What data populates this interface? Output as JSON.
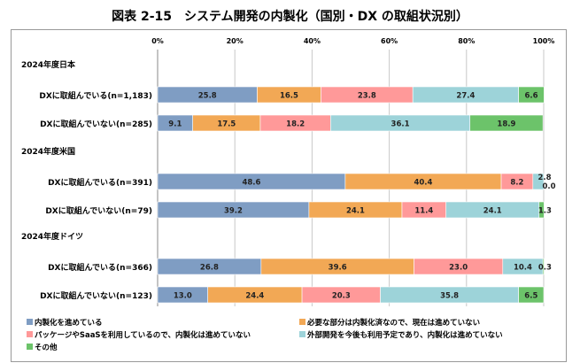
{
  "chart_data": {
    "type": "bar",
    "orientation": "horizontal",
    "stacked": true,
    "title": "図表 2-15　システム開発の内製化（国別・DX の取組状況別）",
    "xlim": [
      0,
      100
    ],
    "x_ticks": [
      "0%",
      "20%",
      "40%",
      "60%",
      "80%",
      "100%"
    ],
    "grid": true,
    "legend_position": "bottom",
    "groups": [
      {
        "label": "2024年度日本",
        "rows": [
          {
            "label": "DXに取組んでいる(n=1,183)",
            "values": [
              25.8,
              16.5,
              23.8,
              27.4,
              6.6
            ]
          },
          {
            "label": "DXに取組んでいない(n=285)",
            "values": [
              9.1,
              17.5,
              18.2,
              36.1,
              18.9
            ]
          }
        ]
      },
      {
        "label": "2024年度米国",
        "rows": [
          {
            "label": "DXに取組んでいる(n=391)",
            "values": [
              48.6,
              40.4,
              8.2,
              2.8,
              0.0
            ]
          },
          {
            "label": "DXに取組んでいない(n=79)",
            "values": [
              39.2,
              24.1,
              11.4,
              24.1,
              1.3
            ]
          }
        ]
      },
      {
        "label": "2024年度ドイツ",
        "rows": [
          {
            "label": "DXに取組んでいる(n=366)",
            "values": [
              26.8,
              39.6,
              23.0,
              10.4,
              0.3
            ]
          },
          {
            "label": "DXに取組んでいない(n=123)",
            "values": [
              13.0,
              24.4,
              20.3,
              35.8,
              6.5
            ]
          }
        ]
      }
    ],
    "series": [
      {
        "name": "内製化を進めている",
        "color": "#7f9dc3"
      },
      {
        "name": "必要な部分は内製化済なので、現在は進めていない",
        "color": "#f2a855"
      },
      {
        "name": "パッケージやSaaSを利用しているので、内製化は進めていない",
        "color": "#ff9999"
      },
      {
        "name": "外部開発を今後も利用予定であり、内製化は進めていない",
        "color": "#9dd3d9"
      },
      {
        "name": "その他",
        "color": "#6cc36a"
      }
    ]
  }
}
